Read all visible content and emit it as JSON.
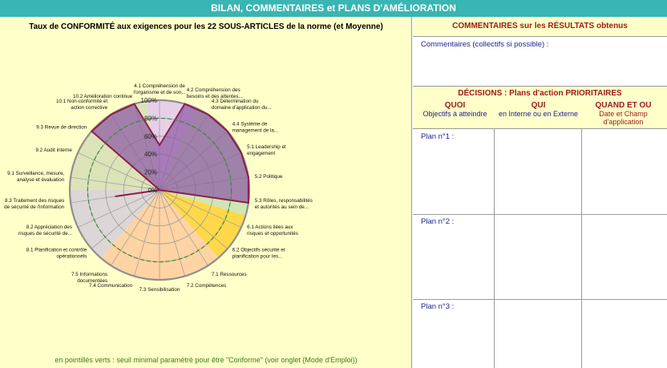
{
  "banner": "BILAN, COMMENTAIRES et PLANS D'AMÉLIORATION",
  "chart_data": {
    "type": "radar",
    "title": "Taux de CONFORMITÉ aux exigences pour les 22 SOUS-ARTICLES de la norme (et Moyenne)",
    "categories": [
      "4.1 Compréhension de l'organisme et de son...",
      "4.2 Compréhension des besoins et des attentes...",
      "4.3 Détermination du domaine d'application du...",
      "4.4 Système de management de la...",
      "5.1 Leadership et engagement",
      "5.2 Politique",
      "5.3 Rôles, responsabilités et autorités au sein de...",
      "6.1 Actions liées aux risques et opportunités",
      "6.2 Objectifs sécurité et planification pour les...",
      "7.1 Ressources",
      "7.2 Compétences",
      "7.3 Sensibilisation",
      "7.4 Communication",
      "7.5 Informations documentées",
      "8.1 Planification et contrôle opérationnels",
      "8.2 Appréciation des risques de sécurité de...",
      "8.3 Traitement des risques de sécurité de l'information",
      "9.1 Surveillance, mesure, analyse et évaluation",
      "9.2 Audit interne",
      "9.3 Revue de direction",
      "10.1 Non-conformité et action corrective",
      "10.2 Amélioration continue"
    ],
    "short_labels": [
      [
        "4.1 Compréhension de",
        "l'organisme et de son..."
      ],
      [
        "4.2 Compréhension des",
        "besoins et des attentes..."
      ],
      [
        "4.3 Détermination du",
        "domaine d'application du..."
      ],
      [
        "4.4 Système de",
        "management de la..."
      ],
      [
        "5.1 Leadership et",
        "engagement"
      ],
      [
        "5.2 Politique"
      ],
      [
        "5.3 Rôles, responsabilités",
        "et autorités au sein de..."
      ],
      [
        "6.1 Actions liées aux",
        "risques et opportunités"
      ],
      [
        "6.2 Objectifs sécurité et",
        "planification pour les..."
      ],
      [
        "7.1 Ressources"
      ],
      [
        "7.2 Compétences"
      ],
      [
        "7.3 Sensibilisation"
      ],
      [
        "7.4 Communication"
      ],
      [
        "7.5 Informations",
        "documentées"
      ],
      [
        "8.1 Planification et contrôle",
        "opérationnels"
      ],
      [
        "8.2 Appréciation des",
        "risques de sécurité de..."
      ],
      [
        "8.3 Traitement des risques",
        "de sécurité de l'information"
      ],
      [
        "9.1 Surveillance, mesure,",
        "analyse et évaluation"
      ],
      [
        "9.2 Audit interne"
      ],
      [
        "9.3 Revue de direction"
      ],
      [
        "10.1 Non-conformité et",
        "action corrective"
      ],
      [
        "10.2  Amélioration continue"
      ]
    ],
    "series": [
      {
        "values": [
          50,
          100,
          100,
          100,
          100,
          100,
          100,
          0,
          0,
          0,
          0,
          0,
          0,
          0,
          0,
          0,
          50,
          0,
          0,
          100,
          100,
          100
        ]
      }
    ],
    "sector_colors": [
      "#e6cfe9",
      "#e6cfe9",
      "#cfe6b4",
      "#cfe6b4",
      "#cfe6b4",
      "#cfe6b4",
      "#cfe6b4",
      "#ffd84a",
      "#ffd84a",
      "#ffd3a3",
      "#ffd3a3",
      "#ffd3a3",
      "#ffd3a3",
      "#ffd3a3",
      "#dcd6d6",
      "#dcd6d6",
      "#dcd6d6",
      "#dce3b8",
      "#dce3b8",
      "#dce3b8",
      "#dce3b8",
      "#dce3b8"
    ],
    "series_fill": "#8d5aa5",
    "series_stroke": "#8a1f4a",
    "threshold": 80,
    "threshold_color": "#2f8f2f",
    "ticks": [
      "0%",
      "20%",
      "40%",
      "60%",
      "80%",
      "100%"
    ],
    "ylim": [
      0,
      100
    ]
  },
  "chart_footnote": "en pointillés verts : seuil minimal paramétré pour être \"Conforme\" (voir onglet {Mode d'Emploi})",
  "comments": {
    "header": "COMMENTAIRES sur les RÉSULTATS obtenus",
    "hint": "Commentaires (collectifs si possible) :"
  },
  "decisions": {
    "title": "DÉCISIONS : Plans d'action PRIORITAIRES",
    "col_quoi": "QUOI",
    "col_quoi_sub": "Objectifs à atteindre",
    "col_qui": "QUI",
    "col_qui_sub": "en Interne ou en Externe",
    "col_quand": "QUAND ET OÙ",
    "col_quand_sub": "Date et Champ d'application"
  },
  "plans": [
    {
      "label": "Plan n°1 :"
    },
    {
      "label": "Plan n°2 :"
    },
    {
      "label": "Plan n°3 :"
    }
  ]
}
